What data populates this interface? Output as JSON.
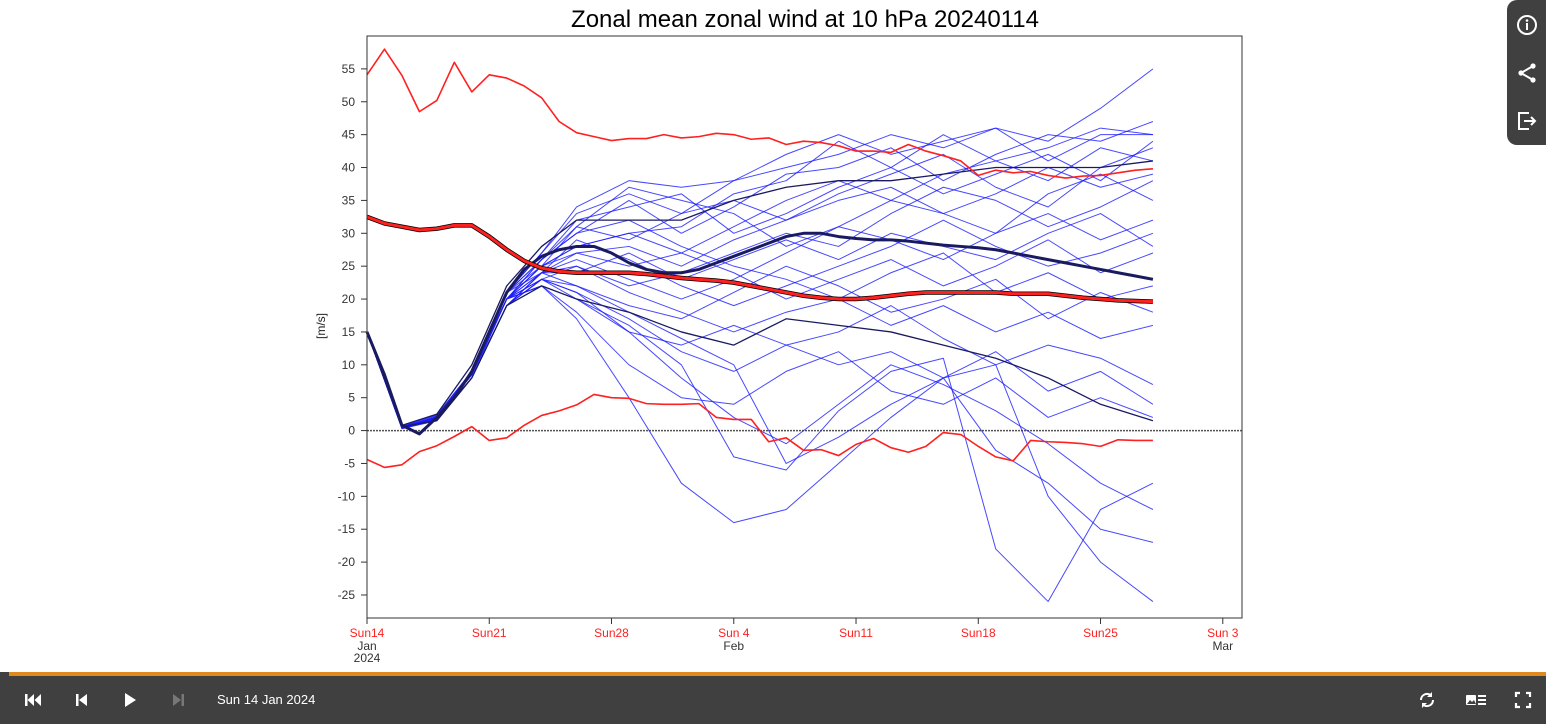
{
  "player": {
    "current_date": "Sun 14 Jan 2024",
    "progress_fraction": 1.0,
    "accent_color": "#e08a1e",
    "side_buttons": [
      "info-icon",
      "share-icon",
      "export-icon"
    ],
    "controls_left": [
      "skip-to-start-icon",
      "step-back-icon",
      "play-icon",
      "step-forward-icon"
    ],
    "controls_right": [
      "loop-icon",
      "legend-toggle-icon",
      "fullscreen-icon"
    ]
  },
  "chart_data": {
    "type": "line",
    "title": "Zonal mean zonal wind at 10 hPa 20240114",
    "ylabel": "[m/s]",
    "xlabel": "",
    "ylim": [
      -28.5,
      60
    ],
    "xlim_days_from_2024-01-14": [
      0,
      50.1
    ],
    "yticks": [
      55,
      50,
      45,
      40,
      35,
      30,
      25,
      20,
      15,
      10,
      5,
      0,
      -5,
      -10,
      -15,
      -20,
      -25
    ],
    "xticks": [
      {
        "day": 0,
        "label": "Sun14",
        "sub": [
          "Jan",
          "2024"
        ]
      },
      {
        "day": 7,
        "label": "Sun21",
        "sub": []
      },
      {
        "day": 14,
        "label": "Sun28",
        "sub": []
      },
      {
        "day": 21,
        "label": "Sun 4",
        "sub": [
          "Feb"
        ]
      },
      {
        "day": 28,
        "label": "Sun11",
        "sub": []
      },
      {
        "day": 35,
        "label": "Sun18",
        "sub": []
      },
      {
        "day": 42,
        "label": "Sun25",
        "sub": []
      },
      {
        "day": 49,
        "label": "Sun 3",
        "sub": [
          "Mar"
        ]
      }
    ],
    "reference_line": 0,
    "colors": {
      "members": "#1a1aff",
      "climatology": "#ff2020",
      "ensemble_mean": "#1a1a60",
      "tick_label": "#ff2020"
    },
    "climatology_max": [
      54.1,
      58,
      54,
      48.5,
      50.2,
      56,
      51.5,
      54.1,
      53.6,
      52.4,
      50.6,
      47,
      45.3,
      44.7,
      44.1,
      44.4,
      44.4,
      45,
      44.5,
      44.7,
      45.2,
      45,
      44.3,
      44.5,
      43.5,
      44,
      43.8,
      43.3,
      42.5,
      42.5,
      42.3,
      43.5,
      42.5,
      41.8,
      41,
      38.8,
      39.6,
      39.2,
      39.4,
      38.8,
      38.4,
      38.7,
      38.8,
      39.2,
      39.6,
      39.8
    ],
    "climatology_min": [
      -4.4,
      -5.6,
      -5.2,
      -3.2,
      -2.3,
      -0.9,
      0.6,
      -1.5,
      -1.1,
      0.8,
      2.3,
      3,
      3.9,
      5.5,
      5,
      4.9,
      4.1,
      4,
      4,
      4.1,
      2,
      1.7,
      1.7,
      -1.7,
      -1.1,
      -3,
      -2.9,
      -3.8,
      -2.1,
      -1.2,
      -2.6,
      -3.3,
      -2.4,
      -0.3,
      -0.6,
      -2.4,
      -4,
      -4.6,
      -1.5,
      -1.7,
      -1.8,
      -2,
      -2.4,
      -1.4,
      -1.5,
      -1.5
    ],
    "climatology_mean": [
      32.5,
      31.5,
      31,
      30.5,
      30.7,
      31.2,
      31.2,
      29.5,
      27.5,
      25.8,
      24.7,
      24.2,
      24,
      24,
      24,
      24,
      23.8,
      23.5,
      23.2,
      23,
      22.8,
      22.5,
      22,
      21.5,
      21,
      20.5,
      20.2,
      20,
      20,
      20.2,
      20.5,
      20.8,
      21,
      21,
      21,
      21,
      21,
      20.8,
      20.8,
      20.8,
      20.5,
      20.2,
      20,
      19.8,
      19.7,
      19.6
    ],
    "ensemble_mean": [
      15,
      8.5,
      0.8,
      -0.5,
      2,
      5,
      9,
      15,
      21,
      24.5,
      26.5,
      27.5,
      28,
      28,
      27,
      25.5,
      24.5,
      24,
      24,
      24.5,
      25.5,
      26.5,
      27.5,
      28.5,
      29.5,
      30,
      30,
      29.5,
      29.2,
      29,
      29,
      28.8,
      28.5,
      28.2,
      28,
      27.8,
      27.5,
      27,
      26.5,
      26,
      25.5,
      25,
      24.5,
      24,
      23.5,
      23
    ],
    "ensemble_upper": {
      "days": [
        0,
        2,
        4,
        6,
        8,
        10,
        12,
        15,
        18,
        21,
        24,
        27,
        30,
        33,
        36,
        39,
        42,
        45
      ],
      "values": [
        15,
        0.8,
        2.5,
        10,
        22,
        28,
        32,
        32,
        32,
        35,
        37,
        38,
        38,
        39,
        40,
        40,
        40,
        41
      ]
    },
    "ensemble_lower": {
      "days": [
        0,
        2,
        4,
        6,
        8,
        10,
        12,
        15,
        18,
        21,
        24,
        27,
        30,
        33,
        36,
        39,
        42,
        45
      ],
      "values": [
        15,
        0.6,
        1.5,
        8,
        19,
        22,
        20,
        18,
        15,
        13,
        17,
        16,
        15,
        13,
        11,
        8,
        4,
        1.5
      ]
    },
    "member_days": [
      0,
      2,
      4,
      6,
      8,
      10,
      12,
      15,
      18,
      21,
      24,
      27,
      30,
      33,
      36,
      39,
      42,
      45
    ],
    "members": [
      [
        15,
        0.5,
        2,
        9,
        21,
        27,
        33,
        36,
        33,
        38,
        42,
        45,
        42,
        44,
        46,
        44,
        49,
        55
      ],
      [
        15,
        0.3,
        1.5,
        8,
        20,
        26,
        30,
        35,
        30,
        34,
        39,
        40,
        43,
        38,
        42,
        45,
        44,
        47
      ],
      [
        15,
        0.6,
        2,
        9,
        20,
        25,
        28,
        30,
        31,
        36,
        38,
        44,
        40,
        45,
        41,
        43,
        46,
        45
      ],
      [
        15,
        0.4,
        2.2,
        8.5,
        21,
        26,
        32,
        34,
        36,
        30,
        33,
        37,
        40,
        36,
        39,
        42,
        38,
        44
      ],
      [
        15,
        0.5,
        1.8,
        8,
        19,
        24,
        27,
        28,
        25,
        29,
        32,
        36,
        39,
        42,
        37,
        34,
        40,
        43
      ],
      [
        15,
        0.5,
        2,
        9,
        21,
        25,
        31,
        37,
        35,
        33,
        28,
        31,
        35,
        33,
        30,
        36,
        39,
        35
      ],
      [
        15,
        0.7,
        2.4,
        9,
        20,
        23,
        25,
        22,
        24,
        27,
        30,
        28,
        33,
        37,
        35,
        31,
        34,
        38
      ],
      [
        15,
        0.5,
        2,
        8.5,
        20,
        24,
        26,
        23,
        20,
        23,
        27,
        31,
        29,
        26,
        30,
        33,
        29,
        32
      ],
      [
        15,
        0.3,
        1.6,
        8,
        19,
        24,
        29,
        26,
        22,
        19,
        22,
        25,
        28,
        32,
        28,
        25,
        27,
        30
      ],
      [
        15,
        0.5,
        2,
        8.5,
        20,
        25,
        27,
        25,
        27,
        24,
        20,
        23,
        26,
        22,
        25,
        29,
        24,
        27
      ],
      [
        15,
        0.6,
        2,
        9,
        21,
        26,
        30,
        32,
        28,
        25,
        23,
        20,
        24,
        27,
        21,
        24,
        20,
        22
      ],
      [
        15,
        0.4,
        1.8,
        8,
        19,
        23,
        22,
        19,
        17,
        21,
        25,
        22,
        18,
        20,
        23,
        17,
        21,
        18
      ],
      [
        15,
        0.5,
        2,
        8.5,
        20,
        24,
        25,
        21,
        18,
        15,
        18,
        20,
        16,
        19,
        15,
        18,
        14,
        16
      ],
      [
        15,
        0.5,
        2.1,
        9,
        20,
        22,
        20,
        15,
        13,
        16,
        13,
        15,
        19,
        14,
        10,
        13,
        11,
        7
      ],
      [
        15,
        0.4,
        1.9,
        8,
        19,
        23,
        21,
        17,
        12,
        9,
        13,
        10,
        12,
        8,
        12,
        6,
        9,
        4
      ],
      [
        15,
        0.5,
        2,
        8.5,
        20,
        22,
        18,
        10,
        5,
        4,
        9,
        12,
        6,
        4,
        8,
        2,
        5,
        2
      ],
      [
        15,
        0.6,
        2,
        9,
        20,
        23,
        21,
        15,
        8,
        2,
        -2,
        4,
        10,
        7,
        3,
        -2,
        -8,
        -12
      ],
      [
        15,
        0.5,
        2,
        8.5,
        20,
        22,
        17,
        5,
        -8,
        -14,
        -12,
        -5,
        2,
        8,
        -3,
        -8,
        -15,
        -17
      ],
      [
        15,
        0.5,
        2,
        9,
        21,
        24,
        22,
        18,
        14,
        10,
        -5,
        -1,
        4,
        8,
        10,
        -10,
        -20,
        -26
      ],
      [
        15,
        0.4,
        1.8,
        8,
        19,
        23,
        20,
        16,
        10,
        -4,
        -6,
        3,
        9,
        11,
        -18,
        -26,
        -12,
        -8
      ],
      [
        15,
        0.5,
        2,
        8.5,
        20,
        25,
        28,
        30,
        27,
        31,
        35,
        38,
        35,
        39,
        41,
        38,
        43,
        41
      ],
      [
        15,
        0.5,
        2,
        8.5,
        20,
        26,
        31,
        29,
        33,
        35,
        32,
        35,
        37,
        33,
        36,
        40,
        37,
        39
      ],
      [
        15,
        0.6,
        2.3,
        9,
        21,
        27,
        34,
        38,
        37,
        38,
        40,
        42,
        45,
        43,
        46,
        41,
        45,
        45
      ],
      [
        15,
        0.4,
        1.7,
        8,
        19,
        24,
        24,
        27,
        23,
        26,
        29,
        26,
        30,
        28,
        26,
        30,
        33,
        28
      ]
    ]
  }
}
